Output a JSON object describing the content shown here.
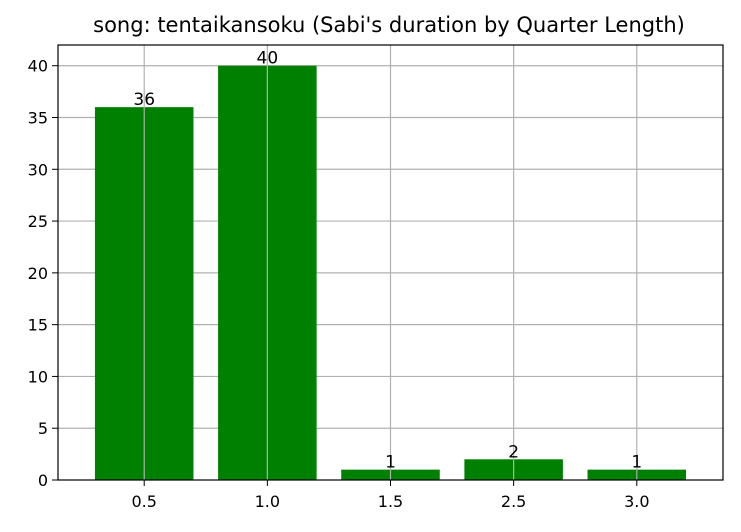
{
  "chart_data": {
    "type": "bar",
    "title": "song: tentaikansoku (Sabi's duration by Quarter Length)",
    "xlabel": "",
    "ylabel": "",
    "categories": [
      "0.5",
      "1.0",
      "1.5",
      "2.5",
      "3.0"
    ],
    "values": [
      36,
      40,
      1,
      2,
      1
    ],
    "data_labels": [
      "36",
      "40",
      "1",
      "2",
      "1"
    ],
    "ylim": [
      0,
      42
    ],
    "yticks": [
      0,
      5,
      10,
      15,
      20,
      25,
      30,
      35,
      40
    ],
    "ytick_labels": [
      "0",
      "5",
      "10",
      "15",
      "20",
      "25",
      "30",
      "35",
      "40"
    ],
    "grid": true,
    "bar_color": "#008000",
    "grid_color": "#b0b0b0"
  }
}
